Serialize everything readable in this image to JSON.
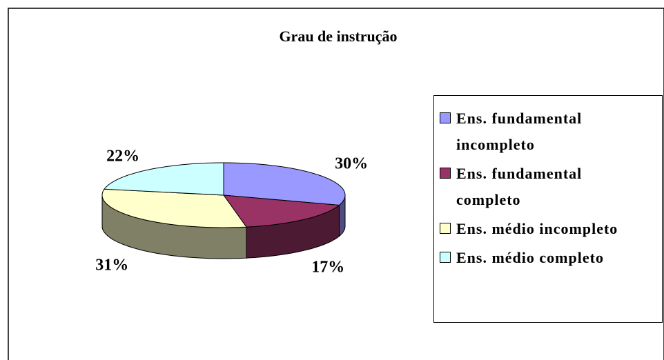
{
  "chart_data": {
    "type": "pie",
    "title": "Grau de instrução",
    "categories": [
      "Ens. fundamental incompleto",
      "Ens. fundamental completo",
      "Ens. médio incompleto",
      "Ens. médio completo"
    ],
    "values": [
      30,
      17,
      31,
      22
    ],
    "value_labels": [
      "30%",
      "17%",
      "31%",
      "22%"
    ],
    "colors": [
      "#9999ff",
      "#993366",
      "#ffffcc",
      "#ccffff"
    ],
    "legend": "right"
  }
}
